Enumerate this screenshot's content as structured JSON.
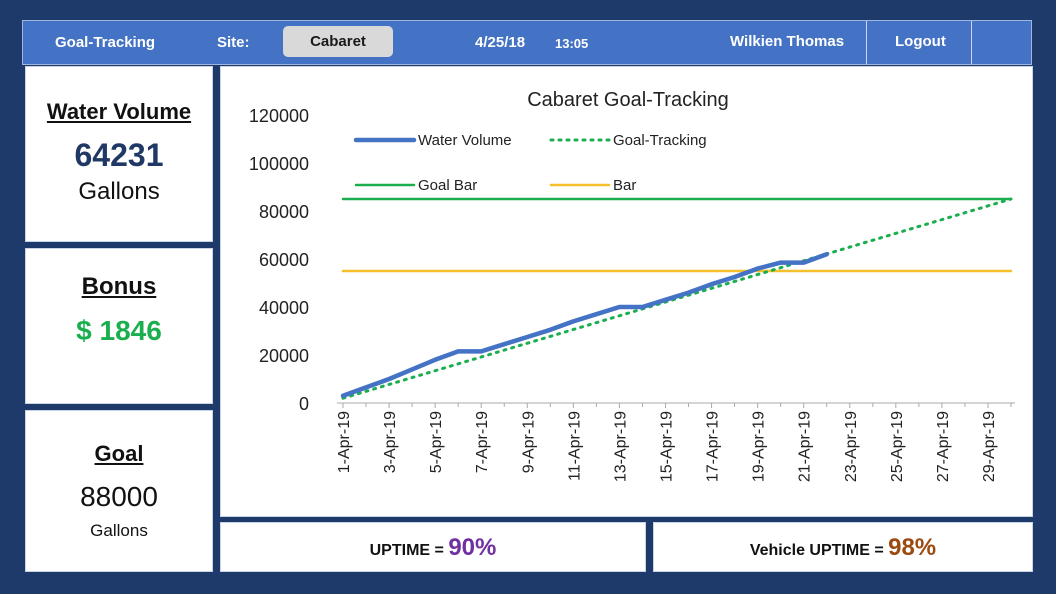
{
  "header": {
    "app_title": "Goal-Tracking",
    "site_label": "Site:",
    "site_value": "Cabaret",
    "date": "4/25/18",
    "time": "13:05",
    "user": "Wilkien Thomas",
    "logout_label": "Logout"
  },
  "water_volume": {
    "title": "Water Volume",
    "value": "64231",
    "unit": "Gallons"
  },
  "bonus": {
    "title": "Bonus",
    "value": "$ 1846"
  },
  "goal": {
    "title": "Goal",
    "value": "88000",
    "unit": "Gallons"
  },
  "uptime": {
    "label": "UPTIME =",
    "value": "90%"
  },
  "vehicle_uptime": {
    "label": "Vehicle UPTIME =",
    "value": "98%"
  },
  "colors": {
    "header_bg": "#4472c4",
    "page_bg": "#1e3a6b",
    "water_series": "#4472c4",
    "goal_tracking": "#1aae4e",
    "goal_bar": "#1aae4e",
    "bar": "#f5c02c",
    "uptime_value": "#7030a0",
    "vehicle_uptime_value": "#9c4a10",
    "bonus_value": "#1aae4e"
  },
  "chart_data": {
    "type": "line",
    "title": "Cabaret Goal-Tracking",
    "xlabel": "",
    "ylabel": "",
    "ylim": [
      0,
      120000
    ],
    "yticks": [
      0,
      20000,
      40000,
      60000,
      80000,
      100000,
      120000
    ],
    "x_tick_labels": [
      "1-Apr-19",
      "3-Apr-19",
      "5-Apr-19",
      "7-Apr-19",
      "9-Apr-19",
      "11-Apr-19",
      "13-Apr-19",
      "15-Apr-19",
      "17-Apr-19",
      "19-Apr-19",
      "21-Apr-19",
      "23-Apr-19",
      "25-Apr-19",
      "27-Apr-19",
      "29-Apr-19"
    ],
    "x_day_range": [
      1,
      30
    ],
    "legend": [
      "Water Volume",
      "Goal-Tracking",
      "Goal Bar",
      "Bar"
    ],
    "legend_position": "top-left",
    "grid": false,
    "series": [
      {
        "name": "Water Volume",
        "style": "solid",
        "days": [
          1,
          2,
          3,
          4,
          5,
          6,
          7,
          8,
          9,
          10,
          11,
          12,
          13,
          14,
          15,
          16,
          17,
          18,
          19,
          20,
          21,
          22
        ],
        "values": [
          3000,
          6500,
          10000,
          14000,
          18000,
          21500,
          21500,
          24500,
          27500,
          30500,
          34000,
          37000,
          40000,
          40000,
          43000,
          46000,
          49500,
          52500,
          56000,
          58500,
          58500,
          62000
        ]
      },
      {
        "name": "Goal-Tracking",
        "style": "dotted",
        "days": [
          1,
          30
        ],
        "values": [
          2000,
          85000
        ]
      },
      {
        "name": "Goal Bar",
        "style": "solid",
        "days": [
          1,
          30
        ],
        "values": [
          85000,
          85000
        ]
      },
      {
        "name": "Bar",
        "style": "solid",
        "days": [
          1,
          30
        ],
        "values": [
          55000,
          55000
        ]
      }
    ]
  }
}
